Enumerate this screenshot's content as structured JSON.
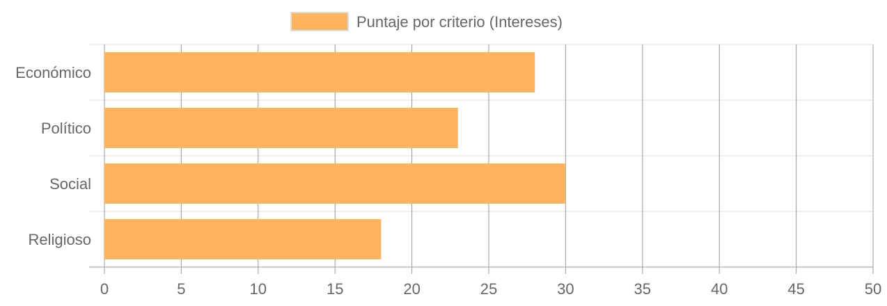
{
  "chart_data": {
    "type": "bar",
    "orientation": "horizontal",
    "categories": [
      "Económico",
      "Político",
      "Social",
      "Religioso"
    ],
    "series": [
      {
        "name": "Puntaje por criterio (Intereses)",
        "values": [
          28,
          23,
          30,
          18
        ],
        "color": "#ffb55f"
      }
    ],
    "xlim": [
      0,
      50
    ],
    "x_ticks": [
      0,
      5,
      10,
      15,
      20,
      25,
      30,
      35,
      40,
      45,
      50
    ],
    "grid": true,
    "legend_position": "top-center",
    "colors": {
      "bar_fill": "#ffb55f",
      "legend_border": "#dddddd",
      "grid": "#9a9a9a",
      "row_grid": "#dcdcdc",
      "text": "#666666"
    }
  }
}
